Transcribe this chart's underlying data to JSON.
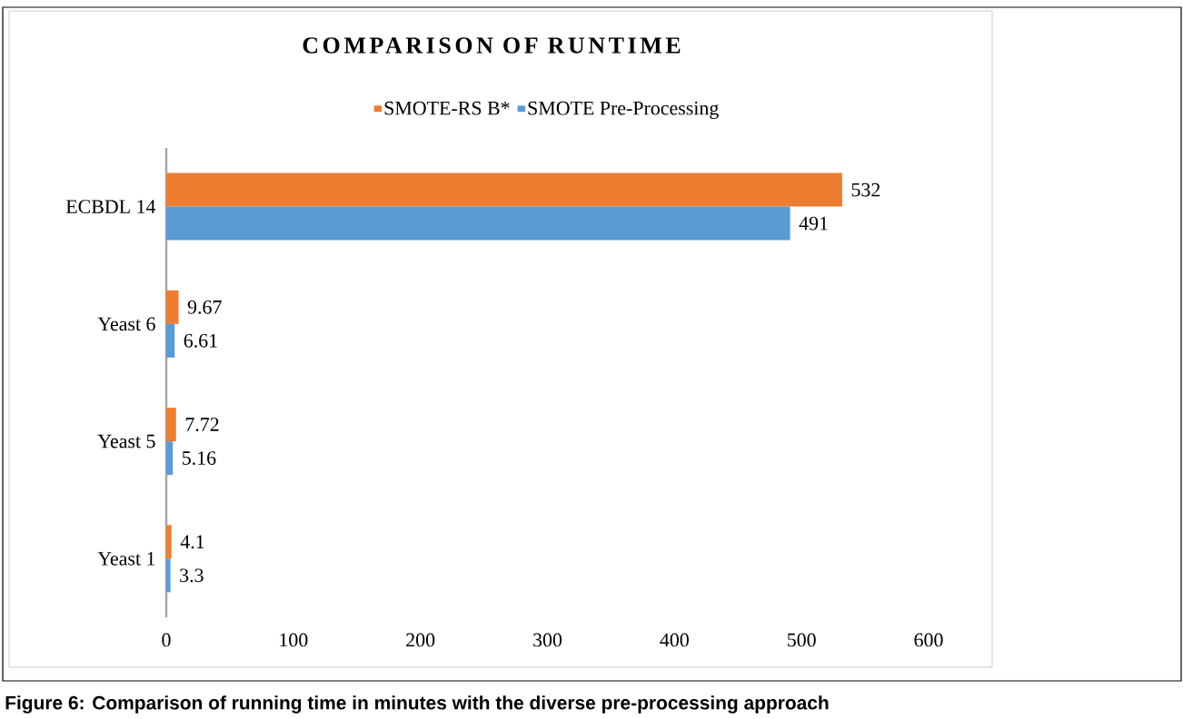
{
  "chart_data": {
    "type": "bar",
    "orientation": "horizontal",
    "title": "COMPARISON OF RUNTIME",
    "categories": [
      "ECBDL 14",
      "Yeast 6",
      "Yeast 5",
      "Yeast 1"
    ],
    "series": [
      {
        "name": "SMOTE-RS B*",
        "color": "#ed7d31",
        "values": [
          532,
          9.67,
          7.72,
          4.1
        ]
      },
      {
        "name": "SMOTE Pre-Processing",
        "color": "#5b9bd5",
        "values": [
          491,
          6.61,
          5.16,
          3.3
        ]
      }
    ],
    "xlim": [
      0,
      600
    ],
    "xticks": [
      0,
      100,
      200,
      300,
      400,
      500,
      600
    ],
    "data_labels": true,
    "legend": "top",
    "grid": false,
    "annotations": [
      "Figure 6: Comparison of running time in minutes with the diverse pre-processing approach"
    ]
  }
}
